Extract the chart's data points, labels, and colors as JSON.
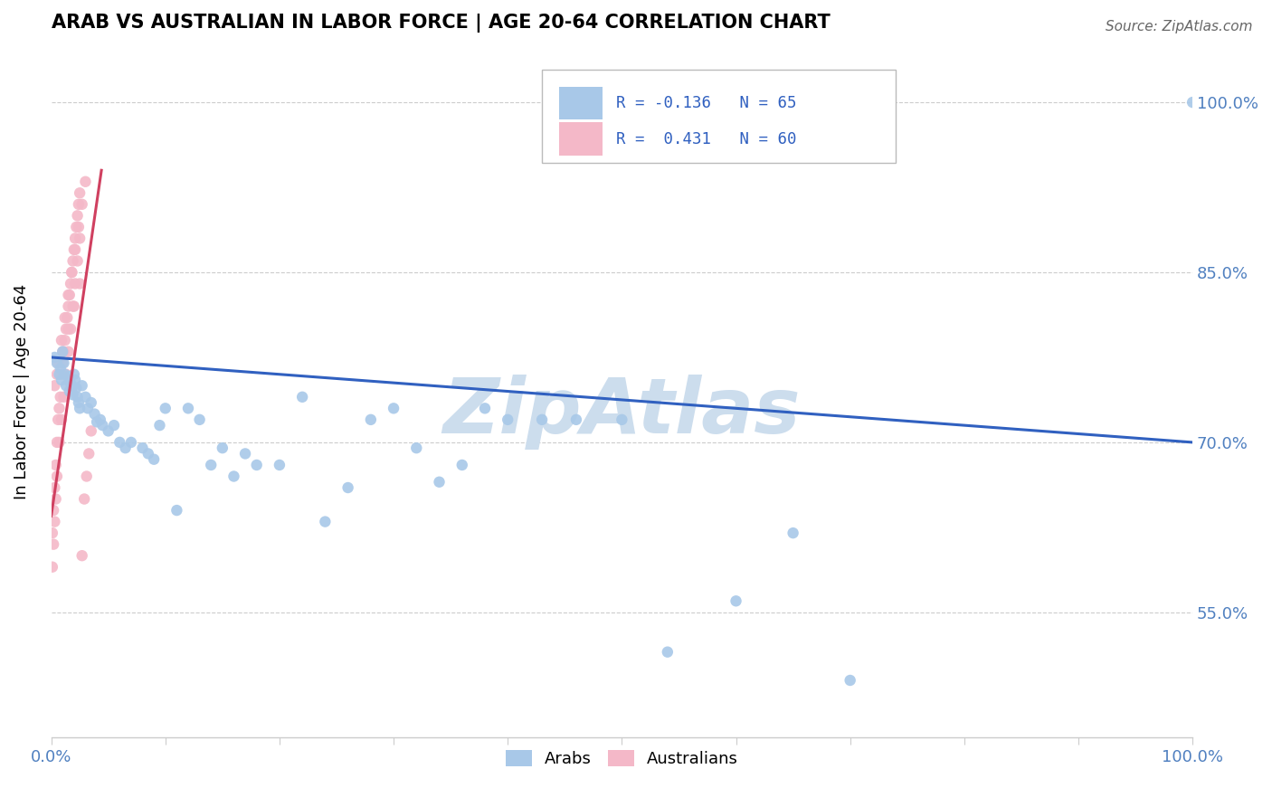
{
  "title": "ARAB VS AUSTRALIAN IN LABOR FORCE | AGE 20-64 CORRELATION CHART",
  "source": "Source: ZipAtlas.com",
  "ylabel": "In Labor Force | Age 20-64",
  "ytick_labels": [
    "55.0%",
    "70.0%",
    "85.0%",
    "100.0%"
  ],
  "ytick_values": [
    0.55,
    0.7,
    0.85,
    1.0
  ],
  "xrange": [
    0.0,
    1.0
  ],
  "yrange": [
    0.44,
    1.05
  ],
  "arab_color": "#a8c8e8",
  "australian_color": "#f4b8c8",
  "arab_edge_color": "#a8c8e8",
  "australian_edge_color": "#f4b8c8",
  "arab_line_color": "#3060c0",
  "australian_line_color": "#d04060",
  "legend_arab_box_color": "#a8c8e8",
  "legend_aus_box_color": "#f4b8c8",
  "legend_text_color": "#3060c0",
  "ytick_color": "#5080c0",
  "xtick_color": "#5080c0",
  "watermark_color": "#ccdded",
  "grid_color": "#cccccc",
  "arab_R": -0.136,
  "arab_N": 65,
  "australian_R": 0.431,
  "australian_N": 60,
  "arab_x": [
    0.003,
    0.005,
    0.007,
    0.008,
    0.009,
    0.01,
    0.011,
    0.012,
    0.013,
    0.015,
    0.016,
    0.017,
    0.018,
    0.019,
    0.02,
    0.021,
    0.022,
    0.023,
    0.024,
    0.025,
    0.027,
    0.03,
    0.032,
    0.035,
    0.038,
    0.04,
    0.043,
    0.045,
    0.05,
    0.055,
    0.06,
    0.065,
    0.07,
    0.08,
    0.085,
    0.09,
    0.095,
    0.1,
    0.11,
    0.12,
    0.13,
    0.14,
    0.15,
    0.16,
    0.17,
    0.18,
    0.2,
    0.22,
    0.24,
    0.26,
    0.28,
    0.3,
    0.32,
    0.34,
    0.36,
    0.38,
    0.4,
    0.43,
    0.46,
    0.5,
    0.54,
    0.6,
    0.65,
    0.7,
    1.0
  ],
  "arab_y": [
    0.775,
    0.77,
    0.76,
    0.765,
    0.755,
    0.78,
    0.77,
    0.76,
    0.75,
    0.758,
    0.745,
    0.752,
    0.748,
    0.742,
    0.76,
    0.755,
    0.748,
    0.74,
    0.735,
    0.73,
    0.75,
    0.74,
    0.73,
    0.735,
    0.725,
    0.718,
    0.72,
    0.715,
    0.71,
    0.715,
    0.7,
    0.695,
    0.7,
    0.695,
    0.69,
    0.685,
    0.715,
    0.73,
    0.64,
    0.73,
    0.72,
    0.68,
    0.695,
    0.67,
    0.69,
    0.68,
    0.68,
    0.74,
    0.63,
    0.66,
    0.72,
    0.73,
    0.695,
    0.665,
    0.68,
    0.73,
    0.72,
    0.72,
    0.72,
    0.72,
    0.515,
    0.56,
    0.62,
    0.49,
    1.0
  ],
  "aus_x": [
    0.001,
    0.002,
    0.003,
    0.004,
    0.005,
    0.006,
    0.007,
    0.008,
    0.009,
    0.01,
    0.011,
    0.012,
    0.013,
    0.014,
    0.015,
    0.016,
    0.017,
    0.018,
    0.019,
    0.02,
    0.021,
    0.022,
    0.023,
    0.024,
    0.025,
    0.027,
    0.029,
    0.031,
    0.033,
    0.035,
    0.001,
    0.002,
    0.003,
    0.004,
    0.005,
    0.007,
    0.009,
    0.011,
    0.013,
    0.015,
    0.017,
    0.019,
    0.021,
    0.023,
    0.025,
    0.003,
    0.006,
    0.009,
    0.012,
    0.015,
    0.018,
    0.021,
    0.024,
    0.027,
    0.03,
    0.005,
    0.01,
    0.015,
    0.02,
    0.025
  ],
  "aus_y": [
    0.62,
    0.64,
    0.66,
    0.68,
    0.7,
    0.72,
    0.73,
    0.74,
    0.76,
    0.77,
    0.78,
    0.79,
    0.8,
    0.81,
    0.82,
    0.83,
    0.84,
    0.85,
    0.86,
    0.87,
    0.88,
    0.89,
    0.9,
    0.91,
    0.92,
    0.6,
    0.65,
    0.67,
    0.69,
    0.71,
    0.59,
    0.61,
    0.63,
    0.65,
    0.67,
    0.7,
    0.72,
    0.74,
    0.76,
    0.78,
    0.8,
    0.82,
    0.84,
    0.86,
    0.88,
    0.75,
    0.77,
    0.79,
    0.81,
    0.83,
    0.85,
    0.87,
    0.89,
    0.91,
    0.93,
    0.76,
    0.78,
    0.8,
    0.82,
    0.84
  ]
}
